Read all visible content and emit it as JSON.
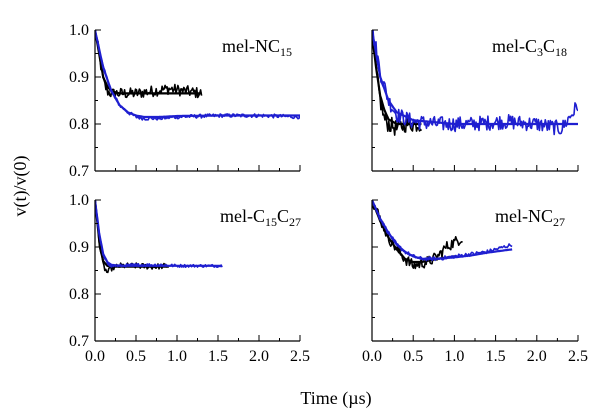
{
  "chart_data": {
    "type": "line",
    "xlabel": "Time (µs)",
    "ylabel": "v(t)/v(0)",
    "xlim": [
      0,
      2.5
    ],
    "ylim": [
      0.7,
      1.0
    ],
    "x_ticks": [
      "0.0",
      "0.5",
      "1.0",
      "1.5",
      "2.0",
      "2.5"
    ],
    "y_ticks": [
      "0.7",
      "0.8",
      "0.9",
      "1.0"
    ],
    "grid": false,
    "series_colors": {
      "black": "#000000",
      "blue": "#1f1fd0"
    },
    "panels": [
      {
        "label": "mel-NC",
        "label_sub": "15",
        "series": [
          {
            "color": "black",
            "kind": "noisy",
            "noise": 0.012,
            "x": [
              0,
              0.05,
              0.1,
              0.15,
              0.2,
              0.3,
              0.5,
              0.7,
              0.9,
              1.1,
              1.3
            ],
            "y": [
              1.0,
              0.95,
              0.89,
              0.87,
              0.865,
              0.865,
              0.865,
              0.87,
              0.875,
              0.87,
              0.865
            ]
          },
          {
            "color": "black",
            "kind": "smooth",
            "x": [
              0,
              0.05,
              0.1,
              0.15,
              0.2,
              0.3,
              0.5,
              0.8,
              1.0,
              1.3
            ],
            "y": [
              1.0,
              0.95,
              0.9,
              0.88,
              0.87,
              0.865,
              0.865,
              0.865,
              0.865,
              0.865
            ]
          },
          {
            "color": "blue",
            "kind": "noisy",
            "noise": 0.004,
            "x": [
              0,
              0.05,
              0.1,
              0.2,
              0.3,
              0.4,
              0.5,
              0.6,
              0.8,
              1.0,
              1.5,
              2.0,
              2.5
            ],
            "y": [
              1.0,
              0.96,
              0.92,
              0.87,
              0.84,
              0.825,
              0.815,
              0.812,
              0.812,
              0.815,
              0.818,
              0.818,
              0.815
            ]
          },
          {
            "color": "blue",
            "kind": "smooth",
            "x": [
              0,
              0.05,
              0.1,
              0.2,
              0.3,
              0.4,
              0.5,
              0.6,
              0.8,
              1.0,
              1.5,
              2.0,
              2.5
            ],
            "y": [
              1.0,
              0.96,
              0.92,
              0.87,
              0.84,
              0.825,
              0.818,
              0.815,
              0.815,
              0.817,
              0.818,
              0.818,
              0.818
            ]
          }
        ]
      },
      {
        "label": "mel-C",
        "label_sub": "3",
        "label_mid": "C",
        "label_sub2": "18",
        "series": [
          {
            "color": "black",
            "kind": "noisy",
            "noise": 0.018,
            "x": [
              0,
              0.03,
              0.06,
              0.1,
              0.15,
              0.2,
              0.3,
              0.4,
              0.5,
              0.6
            ],
            "y": [
              0.99,
              0.95,
              0.9,
              0.85,
              0.81,
              0.8,
              0.79,
              0.8,
              0.8,
              0.8
            ]
          },
          {
            "color": "black",
            "kind": "smooth",
            "x": [
              0,
              0.05,
              0.1,
              0.15,
              0.2,
              0.3,
              0.4,
              0.6
            ],
            "y": [
              0.99,
              0.92,
              0.86,
              0.83,
              0.81,
              0.8,
              0.8,
              0.8
            ]
          },
          {
            "color": "blue",
            "kind": "noisy",
            "noise": 0.016,
            "x": [
              0,
              0.05,
              0.1,
              0.2,
              0.3,
              0.5,
              0.8,
              1.2,
              1.6,
              2.0,
              2.3,
              2.5
            ],
            "y": [
              1.0,
              0.96,
              0.91,
              0.85,
              0.82,
              0.805,
              0.8,
              0.8,
              0.805,
              0.8,
              0.79,
              0.84
            ]
          },
          {
            "color": "blue",
            "kind": "smooth",
            "x": [
              0,
              0.05,
              0.1,
              0.2,
              0.3,
              0.5,
              1.0,
              1.5,
              2.0,
              2.5
            ],
            "y": [
              1.0,
              0.95,
              0.9,
              0.85,
              0.825,
              0.808,
              0.8,
              0.8,
              0.8,
              0.8
            ]
          }
        ]
      },
      {
        "label": "mel-C",
        "label_sub": "15",
        "label_mid": "C",
        "label_sub2": "27",
        "series": [
          {
            "color": "black",
            "kind": "noisy",
            "noise": 0.006,
            "x": [
              0,
              0.03,
              0.06,
              0.1,
              0.15,
              0.2,
              0.3,
              0.5,
              0.7,
              0.9
            ],
            "y": [
              1.0,
              0.95,
              0.9,
              0.86,
              0.845,
              0.855,
              0.86,
              0.86,
              0.858,
              0.86
            ]
          },
          {
            "color": "black",
            "kind": "smooth",
            "x": [
              0,
              0.03,
              0.06,
              0.1,
              0.15,
              0.2,
              0.3,
              0.5,
              0.9
            ],
            "y": [
              1.0,
              0.95,
              0.9,
              0.87,
              0.86,
              0.858,
              0.858,
              0.858,
              0.858
            ]
          },
          {
            "color": "blue",
            "kind": "noisy",
            "noise": 0.003,
            "x": [
              0,
              0.05,
              0.1,
              0.15,
              0.2,
              0.3,
              0.5,
              0.8,
              1.0,
              1.3,
              1.55
            ],
            "y": [
              1.0,
              0.93,
              0.88,
              0.865,
              0.86,
              0.86,
              0.862,
              0.862,
              0.86,
              0.86,
              0.86
            ]
          },
          {
            "color": "blue",
            "kind": "smooth",
            "x": [
              0,
              0.05,
              0.1,
              0.15,
              0.2,
              0.3,
              0.5,
              1.0,
              1.55
            ],
            "y": [
              1.0,
              0.93,
              0.885,
              0.868,
              0.862,
              0.86,
              0.86,
              0.86,
              0.86
            ]
          }
        ]
      },
      {
        "label": "mel-NC",
        "label_sub": "27",
        "series": [
          {
            "color": "black",
            "kind": "noisy",
            "noise": 0.012,
            "x": [
              0,
              0.1,
              0.2,
              0.3,
              0.4,
              0.5,
              0.6,
              0.7,
              0.8,
              0.9,
              1.0,
              1.1
            ],
            "y": [
              1.0,
              0.96,
              0.92,
              0.895,
              0.875,
              0.86,
              0.865,
              0.87,
              0.88,
              0.9,
              0.91,
              0.92
            ]
          },
          {
            "color": "black",
            "kind": "smooth",
            "x": [
              0,
              0.1,
              0.2,
              0.3,
              0.4,
              0.5,
              0.6,
              0.8,
              1.0
            ],
            "y": [
              1.0,
              0.955,
              0.92,
              0.895,
              0.875,
              0.868,
              0.868,
              0.875,
              0.88
            ]
          },
          {
            "color": "blue",
            "kind": "noisy",
            "noise": 0.004,
            "x": [
              0,
              0.1,
              0.2,
              0.3,
              0.4,
              0.5,
              0.6,
              0.8,
              1.0,
              1.2,
              1.4,
              1.6,
              1.7
            ],
            "y": [
              1.0,
              0.96,
              0.93,
              0.905,
              0.89,
              0.88,
              0.875,
              0.875,
              0.88,
              0.885,
              0.89,
              0.9,
              0.905
            ]
          },
          {
            "color": "blue",
            "kind": "smooth",
            "x": [
              0,
              0.1,
              0.2,
              0.3,
              0.4,
              0.5,
              0.6,
              0.8,
              1.0,
              1.2,
              1.4,
              1.7
            ],
            "y": [
              1.0,
              0.96,
              0.93,
              0.905,
              0.89,
              0.88,
              0.875,
              0.875,
              0.878,
              0.882,
              0.888,
              0.895
            ]
          }
        ]
      }
    ]
  }
}
